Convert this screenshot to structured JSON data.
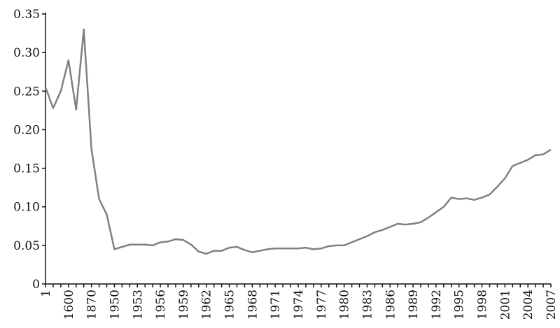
{
  "chart_data": {
    "type": "line",
    "categories": [
      "1",
      null,
      null,
      "1600",
      null,
      null,
      "1870",
      null,
      null,
      "1950",
      null,
      null,
      "1953",
      null,
      null,
      "1956",
      null,
      null,
      "1959",
      null,
      null,
      "1962",
      null,
      null,
      "1965",
      null,
      null,
      "1968",
      null,
      null,
      "1971",
      null,
      null,
      "1974",
      null,
      null,
      "1977",
      null,
      null,
      "1980",
      null,
      null,
      "1983",
      null,
      null,
      "1986",
      null,
      null,
      "1989",
      null,
      null,
      "1992",
      null,
      null,
      "1995",
      null,
      null,
      "1998",
      null,
      null,
      "2001",
      null,
      null,
      "2004",
      null,
      null,
      "2007"
    ],
    "series": [
      {
        "color": "#808080",
        "values": [
          0.255,
          0.228,
          0.25,
          0.29,
          0.226,
          0.33,
          0.175,
          0.11,
          0.09,
          0.045,
          0.048,
          0.051,
          0.051,
          0.051,
          0.05,
          0.054,
          0.055,
          0.058,
          0.057,
          0.051,
          0.042,
          0.039,
          0.043,
          0.043,
          0.047,
          0.048,
          0.044,
          0.041,
          0.043,
          0.045,
          0.046,
          0.046,
          0.046,
          0.046,
          0.047,
          0.045,
          0.046,
          0.049,
          0.05,
          0.05,
          0.054,
          0.058,
          0.062,
          0.067,
          0.07,
          0.074,
          0.078,
          0.077,
          0.078,
          0.08,
          0.086,
          0.093,
          0.1,
          0.112,
          0.11,
          0.111,
          0.109,
          0.112,
          0.116,
          0.126,
          0.137,
          0.153,
          0.157,
          0.161,
          0.167,
          0.168,
          0.174
        ]
      }
    ],
    "ylim": [
      0,
      0.35
    ],
    "yticks": [
      0,
      0.05,
      {
        "value": 0.1,
        "label": "0.10"
      },
      0.15,
      {
        "value": 0.2,
        "label": "0.20"
      },
      0.25,
      {
        "value": 0.3,
        "label": "0.30"
      },
      0.35
    ],
    "grid": false
  }
}
